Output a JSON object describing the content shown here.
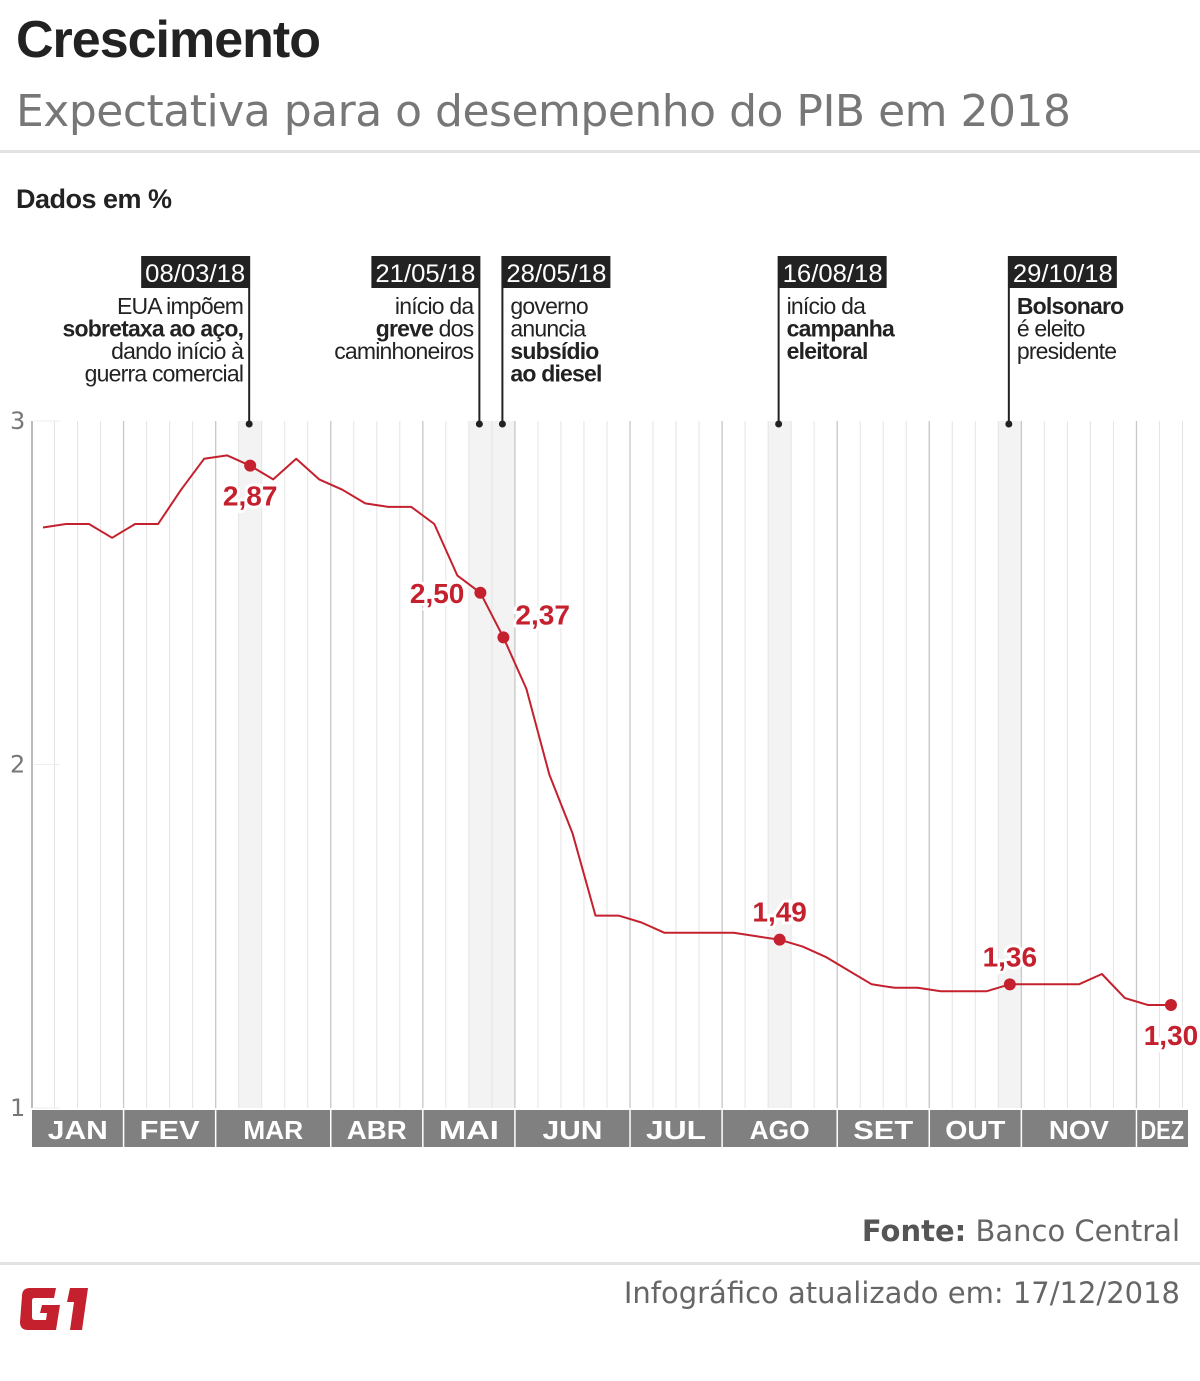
{
  "header": {
    "title": "Crescimento",
    "subtitle": "Expectativa para o desempenho do PIB em 2018"
  },
  "unit_label": "Dados em %",
  "footer": {
    "source_label": "Fonte:",
    "source_value": "Banco Central",
    "updated": "Infográfico atualizado em: 17/12/2018",
    "logo_text": "G1"
  },
  "colors": {
    "line": "#c4202e",
    "annotation": "#222222",
    "month_bar": "#808080",
    "highlight_column": "#f3f3f3",
    "grid": "#e4e4e4",
    "logo": "#c4202e"
  },
  "chart_data": {
    "type": "line",
    "title": "Crescimento",
    "subtitle": "Expectativa para o desempenho do PIB em 2018",
    "ylabel": "Dados em %",
    "ylim": [
      1,
      3
    ],
    "yticks": [
      "1",
      "2",
      "3"
    ],
    "ytick_values": [
      1,
      2,
      3
    ],
    "x_unit": "weekly",
    "months": [
      {
        "label": "JAN",
        "weeks": 4
      },
      {
        "label": "FEV",
        "weeks": 4
      },
      {
        "label": "MAR",
        "weeks": 5
      },
      {
        "label": "ABR",
        "weeks": 4
      },
      {
        "label": "MAI",
        "weeks": 4
      },
      {
        "label": "JUN",
        "weeks": 5
      },
      {
        "label": "JUL",
        "weeks": 4
      },
      {
        "label": "AGO",
        "weeks": 5
      },
      {
        "label": "SET",
        "weeks": 4
      },
      {
        "label": "OUT",
        "weeks": 4
      },
      {
        "label": "NOV",
        "weeks": 5
      },
      {
        "label": "DEZ",
        "weeks": 2
      }
    ],
    "grid": "vertical-weekly",
    "values": [
      2.69,
      2.7,
      2.7,
      2.66,
      2.7,
      2.7,
      2.8,
      2.89,
      2.9,
      2.87,
      2.83,
      2.89,
      2.83,
      2.8,
      2.76,
      2.75,
      2.75,
      2.7,
      2.55,
      2.5,
      2.37,
      2.22,
      1.97,
      1.8,
      1.56,
      1.56,
      1.54,
      1.51,
      1.51,
      1.51,
      1.51,
      1.5,
      1.49,
      1.47,
      1.44,
      1.4,
      1.36,
      1.35,
      1.35,
      1.34,
      1.34,
      1.34,
      1.36,
      1.36,
      1.36,
      1.36,
      1.39,
      1.32,
      1.3,
      1.3
    ],
    "highlighted_points": [
      {
        "week": 9,
        "value": 2.87,
        "label": "2,87",
        "label_position": "below"
      },
      {
        "week": 19,
        "value": 2.5,
        "label": "2,50",
        "label_position": "left"
      },
      {
        "week": 20,
        "value": 2.37,
        "label": "2,37",
        "label_position": "right"
      },
      {
        "week": 32,
        "value": 1.49,
        "label": "1,49",
        "label_position": "above"
      },
      {
        "week": 42,
        "value": 1.36,
        "label": "1,36",
        "label_position": "above"
      },
      {
        "week": 49,
        "value": 1.3,
        "label": "1,30",
        "label_position": "below"
      }
    ],
    "annotations": [
      {
        "week": 9,
        "date": "08/03/18",
        "align": "right",
        "lines": [
          [
            {
              "t": "EUA impõem",
              "b": false
            }
          ],
          [
            {
              "t": "sobretaxa ao aço,",
              "b": true
            }
          ],
          [
            {
              "t": "dando início à",
              "b": false
            }
          ],
          [
            {
              "t": "guerra comercial",
              "b": false
            }
          ]
        ]
      },
      {
        "week": 19,
        "date": "21/05/18",
        "align": "right",
        "lines": [
          [
            {
              "t": "início da",
              "b": false
            }
          ],
          [
            {
              "t": "greve",
              "b": true
            },
            {
              "t": " dos",
              "b": false
            }
          ],
          [
            {
              "t": "caminhoneiros",
              "b": false
            }
          ]
        ]
      },
      {
        "week": 20,
        "date": "28/05/18",
        "align": "left",
        "lines": [
          [
            {
              "t": "governo",
              "b": false
            }
          ],
          [
            {
              "t": "anuncia",
              "b": false
            }
          ],
          [
            {
              "t": "subsídio",
              "b": true
            }
          ],
          [
            {
              "t": "ao diesel",
              "b": true
            }
          ]
        ]
      },
      {
        "week": 32,
        "date": "16/08/18",
        "align": "left",
        "lines": [
          [
            {
              "t": "início da",
              "b": false
            }
          ],
          [
            {
              "t": "campanha",
              "b": true
            }
          ],
          [
            {
              "t": "eleitoral",
              "b": true
            }
          ]
        ]
      },
      {
        "week": 42,
        "date": "29/10/18",
        "align": "left",
        "lines": [
          [
            {
              "t": "Bolsonaro",
              "b": true
            }
          ],
          [
            {
              "t": "é eleito",
              "b": false
            }
          ],
          [
            {
              "t": "presidente",
              "b": false
            }
          ]
        ]
      }
    ]
  }
}
